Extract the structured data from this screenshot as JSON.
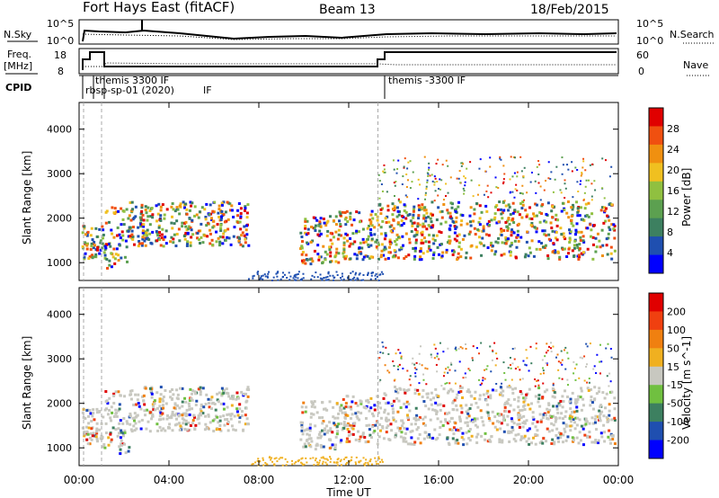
{
  "header": {
    "site": "Fort Hays East (fitACF)",
    "beam": "Beam 13",
    "date": "18/Feb/2015"
  },
  "noise_panel": {
    "left_label": "N.Sky",
    "right_label": "N.Search",
    "left_ticks": [
      "10^5",
      "10^0"
    ],
    "right_ticks": [
      "10^5",
      "10^0"
    ]
  },
  "freq_panel": {
    "left_label_1": "Freq.",
    "left_label_2": "[MHz]",
    "right_label": "Nave",
    "left_ticks": [
      "18",
      "8"
    ],
    "right_ticks": [
      "60",
      "0"
    ]
  },
  "cpid": {
    "label": "CPID",
    "program_1": "themis 3300 IF",
    "program_2": "rbsp-sp-01 (2020)",
    "program_3": "IF",
    "program_4": "themis -3300 IF"
  },
  "chart_data": [
    {
      "type": "heatmap",
      "quantity": "power",
      "ylabel": "Slant Range [km]",
      "ylim": [
        600,
        4600
      ],
      "yticks": [
        1000,
        2000,
        3000,
        4000
      ],
      "xlim": [
        0,
        24
      ],
      "colorbar_label": "Power [dB]",
      "colorbar_ticks": [
        4,
        8,
        12,
        16,
        20,
        24,
        28
      ],
      "colorbar_range": [
        0,
        32
      ],
      "colors": [
        "#0000ff",
        "#1f4fb0",
        "#3d8060",
        "#5ca050",
        "#90c040",
        "#f0c020",
        "#f09010",
        "#f05010",
        "#e00000"
      ]
    },
    {
      "type": "heatmap",
      "quantity": "velocity",
      "ylabel": "Slant Range [km]",
      "ylim": [
        600,
        4600
      ],
      "yticks": [
        1000,
        2000,
        3000,
        4000
      ],
      "xlim": [
        0,
        24
      ],
      "colorbar_label": "Velocity [m s^-1]",
      "colorbar_ticks": [
        200,
        100,
        50,
        15,
        -15,
        -50,
        -100,
        -200
      ],
      "colors": [
        "#0000ff",
        "#1f4fb0",
        "#3d8060",
        "#70c040",
        "#c8c8c0",
        "#f0b020",
        "#f08010",
        "#f04010",
        "#e00000"
      ]
    }
  ],
  "x_axis": {
    "ticks": [
      "00:00",
      "04:00",
      "08:00",
      "12:00",
      "16:00",
      "20:00",
      "00:00"
    ],
    "label": "Time UT"
  }
}
